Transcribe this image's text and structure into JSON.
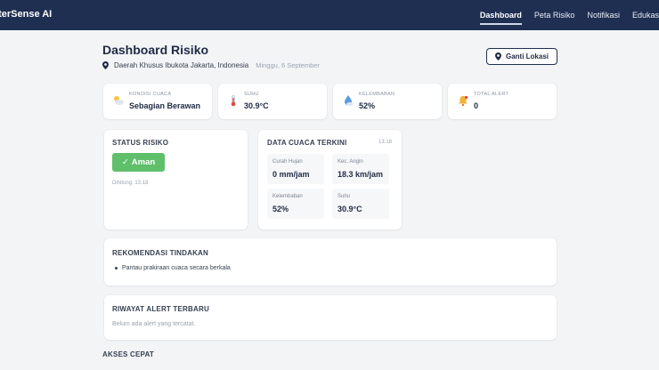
{
  "nav": {
    "brand": "sterSense AI",
    "links": [
      "Dashboard",
      "Peta Risiko",
      "Notifikasi",
      "Edukasi"
    ],
    "active": "Dashboard"
  },
  "header": {
    "title": "Dashboard Risiko",
    "location": "Daerah Khusus Ibukota Jakarta, Indonesia",
    "date": "Minggu, 6 September",
    "change_location_label": "Ganti Lokasi"
  },
  "stats": [
    {
      "icon": "partly-cloudy-icon",
      "label": "KONDISI CUACA",
      "value": "Sebagian Berawan"
    },
    {
      "icon": "thermometer-icon",
      "label": "SUHU",
      "value": "30.9°C"
    },
    {
      "icon": "humidity-icon",
      "label": "KELEMBABAN",
      "value": "52%"
    },
    {
      "icon": "bell-icon",
      "label": "TOTAL ALERT",
      "value": "0"
    }
  ],
  "risk": {
    "title": "STATUS RISIKO",
    "badge": "Aman",
    "badge_color": "#5fbf6a",
    "computed": "Dihitung: 13.18"
  },
  "weather": {
    "title": "DATA CUACA TERKINI",
    "time": "13.18",
    "items": [
      {
        "label": "Curah Hujan",
        "value": "0 mm/jam"
      },
      {
        "label": "Kec. Angin",
        "value": "18.3 km/jam"
      },
      {
        "label": "Kelembaban",
        "value": "52%"
      },
      {
        "label": "Suhu",
        "value": "30.9°C"
      }
    ]
  },
  "recommendations": {
    "title": "REKOMENDASI TINDAKAN",
    "items": [
      "Pantau prakiraan cuaca secara berkala"
    ]
  },
  "history": {
    "title": "RIWAYAT ALERT TERBARU",
    "empty": "Belum ada alert yang tercatat."
  },
  "quick_access": {
    "title": "AKSES CEPAT"
  },
  "colors": {
    "navbar": "#1f2f52",
    "background": "#f3f4f6",
    "safe": "#5fbf6a"
  }
}
